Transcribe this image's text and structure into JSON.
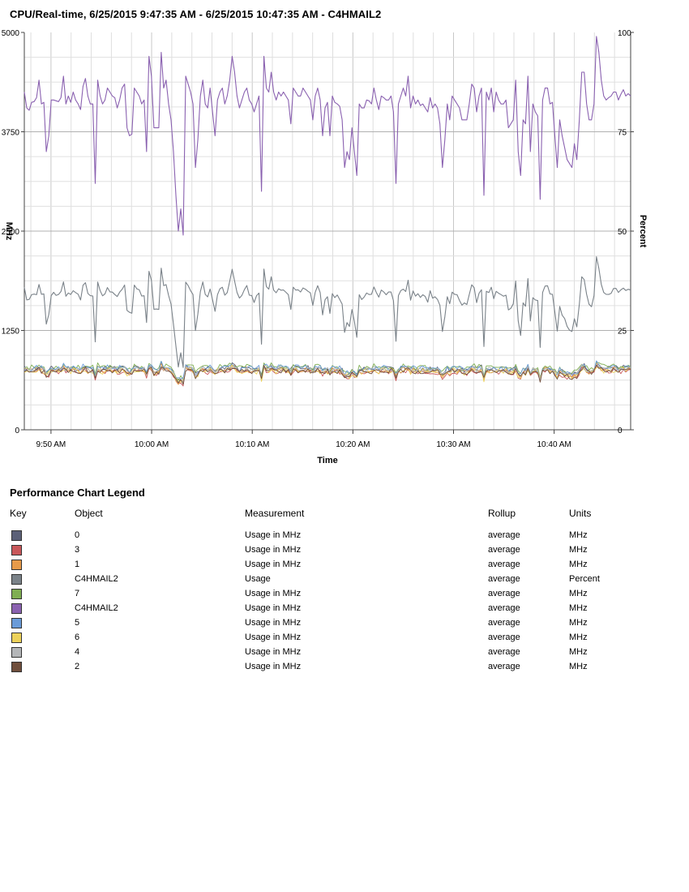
{
  "chart_data": {
    "type": "line",
    "title": "CPU/Real-time, 6/25/2015 9:47:35 AM - 6/25/2015 10:47:35 AM - C4HMAIL2",
    "xlabel": "Time",
    "ylabel_left": "MHz",
    "ylabel_right": "Percent",
    "ylim_left": [
      0,
      5000
    ],
    "ylim_right": [
      0,
      100
    ],
    "xlim_minutes": [
      47.35,
      107.6
    ],
    "x_unit": "minutes after 9:00 AM, sampled every 20 seconds",
    "yticks_left": [
      "0",
      "1250",
      "2500",
      "3750",
      "5000"
    ],
    "yticks_right": [
      "0",
      "25",
      "50",
      "75",
      "100"
    ],
    "xticks": [
      {
        "label": "9:50 AM",
        "minute": 50
      },
      {
        "label": "10:00 AM",
        "minute": 60
      },
      {
        "label": "10:10 AM",
        "minute": 70
      },
      {
        "label": "10:20 AM",
        "minute": 80
      },
      {
        "label": "10:30 AM",
        "minute": 90
      },
      {
        "label": "10:40 AM",
        "minute": 100
      }
    ],
    "grid": true,
    "purple_shape": [
      4250,
      4050,
      4020,
      4120,
      4130,
      4180,
      4400,
      4100,
      4120,
      3500,
      3700,
      4150,
      4150,
      4140,
      4130,
      4180,
      4450,
      4100,
      4200,
      4120,
      4250,
      4150,
      4100,
      4030,
      4320,
      4420,
      4200,
      4100,
      4100,
      3100,
      4400,
      4200,
      4100,
      4150,
      4300,
      4250,
      4200,
      4180,
      4050,
      4150,
      4300,
      4350,
      3800,
      3700,
      3720,
      4300,
      4250,
      4200,
      4100,
      4150,
      3500,
      4700,
      4450,
      3800,
      3800,
      3800,
      4750,
      4300,
      4400,
      4100,
      3900,
      3500,
      2950,
      2500,
      2780,
      2450,
      4450,
      4350,
      4250,
      4100,
      3300,
      3650,
      4200,
      4400,
      4100,
      4050,
      4300,
      4000,
      3700,
      4150,
      4250,
      4300,
      4100,
      4200,
      4400,
      4700,
      4500,
      4200,
      4050,
      4150,
      4250,
      4300,
      4150,
      4100,
      4000,
      4100,
      4200,
      3000,
      4700,
      4300,
      4250,
      4500,
      4250,
      4150,
      4250,
      4200,
      4250,
      4200,
      4150,
      3850,
      4300,
      4250,
      4200,
      4200,
      4300,
      4250,
      4200,
      4150,
      3900,
      4200,
      4300,
      4150,
      3700,
      4050,
      4120,
      3700,
      4200,
      4120,
      4100,
      4070,
      3900,
      3300,
      3500,
      3400,
      3800,
      3500,
      3200,
      4100,
      4050,
      4050,
      4150,
      4140,
      4100,
      4300,
      4150,
      4030,
      4200,
      4180,
      4150,
      4150,
      4200,
      4000,
      3100,
      4100,
      4200,
      4300,
      4200,
      4450,
      4050,
      4200,
      4100,
      4150,
      4080,
      4100,
      4050,
      4000,
      4180,
      4050,
      4100,
      4050,
      3850,
      3300,
      3650,
      4100,
      3900,
      4200,
      4150,
      4100,
      4050,
      3900,
      3900,
      3900,
      4100,
      4350,
      4300,
      4000,
      4200,
      4300,
      2950,
      4250,
      4150,
      4300,
      4000,
      4250,
      4150,
      4100,
      4100,
      4150,
      3800,
      3850,
      3900,
      4400,
      3500,
      3200,
      3900,
      3850,
      4450,
      3500,
      4100,
      4000,
      3950,
      2900,
      4150,
      4300,
      4300,
      4100,
      4120,
      3700,
      3300,
      3900,
      3700,
      3550,
      3400,
      3350,
      3300,
      3600,
      3400,
      3900,
      4500,
      4500,
      4100,
      3900,
      3900,
      4100,
      4950,
      4750,
      4400,
      4200,
      4150,
      4180,
      4200,
      4250,
      4250,
      4150,
      4220,
      4280,
      4200,
      4230,
      4200
    ],
    "series": [
      {
        "object": "0",
        "measurement": "Usage in MHz",
        "rollup": "average",
        "units": "MHz",
        "color": "#5b6077",
        "axis": "left",
        "level": 760,
        "amp": 70,
        "seed": 11
      },
      {
        "object": "3",
        "measurement": "Usage in MHz",
        "rollup": "average",
        "units": "MHz",
        "color": "#c8575a",
        "axis": "left",
        "level": 720,
        "amp": 60,
        "seed": 23
      },
      {
        "object": "1",
        "measurement": "Usage in MHz",
        "rollup": "average",
        "units": "MHz",
        "color": "#e69a4a",
        "axis": "left",
        "level": 740,
        "amp": 65,
        "seed": 37
      },
      {
        "object": "C4HMAIL2",
        "measurement": "Usage",
        "rollup": "average",
        "units": "Percent",
        "color": "#7a8289",
        "axis": "right",
        "level": 33,
        "amp": 1.5,
        "seed": 41
      },
      {
        "object": "7",
        "measurement": "Usage in MHz",
        "rollup": "average",
        "units": "MHz",
        "color": "#7fae52",
        "axis": "left",
        "level": 780,
        "amp": 60,
        "seed": 53
      },
      {
        "object": "C4HMAIL2",
        "measurement": "Usage in MHz",
        "rollup": "average",
        "units": "MHz",
        "color": "#8a61b0",
        "axis": "left",
        "level": 4150,
        "amp": 0,
        "seed": 61
      },
      {
        "object": "5",
        "measurement": "Usage in MHz",
        "rollup": "average",
        "units": "MHz",
        "color": "#6a9bd8",
        "axis": "left",
        "level": 770,
        "amp": 65,
        "seed": 71
      },
      {
        "object": "6",
        "measurement": "Usage in MHz",
        "rollup": "average",
        "units": "MHz",
        "color": "#ecd15a",
        "axis": "left",
        "level": 730,
        "amp": 70,
        "seed": 83
      },
      {
        "object": "4",
        "measurement": "Usage in MHz",
        "rollup": "average",
        "units": "MHz",
        "color": "#b4b6b8",
        "axis": "left",
        "level": 750,
        "amp": 60,
        "seed": 97
      },
      {
        "object": "2",
        "measurement": "Usage in MHz",
        "rollup": "average",
        "units": "MHz",
        "color": "#6f4e3c",
        "axis": "left",
        "level": 730,
        "amp": 60,
        "seed": 101
      }
    ]
  },
  "legend": {
    "title": "Performance Chart Legend",
    "headers": {
      "key": "Key",
      "object": "Object",
      "measurement": "Measurement",
      "rollup": "Rollup",
      "units": "Units"
    }
  }
}
